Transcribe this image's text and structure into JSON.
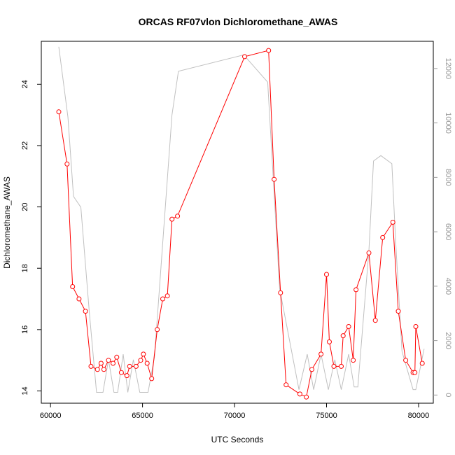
{
  "chart_data": {
    "type": "line",
    "title": "ORCAS RF07vlon Dichloromethane_AWAS",
    "xlabel": "UTC Seconds",
    "ylabel": "Dichloromethane_AWAS",
    "xlim": [
      59500,
      80800
    ],
    "ylim": [
      13.6,
      25.4
    ],
    "y2lim": [
      -300,
      13000
    ],
    "x_ticks": [
      60000,
      65000,
      70000,
      75000,
      80000
    ],
    "y_ticks": [
      14,
      16,
      18,
      20,
      22,
      24
    ],
    "y2_ticks": [
      0,
      2000,
      4000,
      6000,
      8000,
      10000,
      12000
    ],
    "series": [
      {
        "color": "#ff0000",
        "marker": "open-circle",
        "axis": "left",
        "x": [
          60450,
          60900,
          61200,
          61550,
          61900,
          62200,
          62550,
          62750,
          62900,
          63150,
          63400,
          63600,
          63850,
          64150,
          64300,
          64650,
          64900,
          65050,
          65250,
          65500,
          65800,
          66100,
          66350,
          66600,
          66900,
          70550,
          71850,
          72150,
          72500,
          72800,
          73550,
          73900,
          74200,
          74700,
          75000,
          75150,
          75400,
          75800,
          75900,
          76200,
          76450,
          76600,
          77300,
          77650,
          78050,
          78600,
          78900,
          79300,
          79700,
          79800,
          79850,
          80200
        ],
        "y": [
          23.1,
          21.4,
          17.4,
          17.0,
          16.6,
          14.8,
          14.7,
          14.9,
          14.7,
          15.0,
          14.9,
          15.1,
          14.6,
          14.5,
          14.8,
          14.8,
          15.0,
          15.2,
          14.9,
          14.4,
          16.0,
          17.0,
          17.1,
          19.6,
          19.7,
          24.9,
          25.1,
          20.9,
          17.2,
          14.2,
          13.9,
          13.8,
          14.7,
          15.2,
          17.8,
          15.6,
          14.8,
          14.8,
          15.8,
          16.1,
          15.0,
          17.3,
          18.5,
          16.3,
          19.0,
          19.5,
          16.6,
          15.0,
          14.6,
          14.6,
          16.1,
          14.9
        ]
      },
      {
        "color": "#c0c0c0",
        "marker": "none",
        "axis": "right",
        "x": [
          60450,
          60950,
          61250,
          61650,
          62100,
          62500,
          62850,
          63150,
          63450,
          63650,
          63950,
          64200,
          64500,
          64850,
          65300,
          65650,
          66600,
          66950,
          70500,
          71800,
          72450,
          73500,
          73950,
          74300,
          74700,
          75100,
          75450,
          75800,
          76200,
          76500,
          76700,
          77300,
          77550,
          77950,
          78550,
          78750,
          79100,
          79700,
          79850,
          80300
        ],
        "y": [
          12800,
          10200,
          7300,
          6900,
          3100,
          100,
          100,
          1300,
          100,
          100,
          1500,
          100,
          1300,
          100,
          100,
          1400,
          10300,
          11900,
          12500,
          11500,
          3900,
          200,
          1500,
          200,
          1500,
          200,
          1300,
          200,
          1500,
          300,
          300,
          5300,
          8600,
          8800,
          8500,
          5700,
          1600,
          200,
          200,
          1700
        ]
      }
    ]
  }
}
